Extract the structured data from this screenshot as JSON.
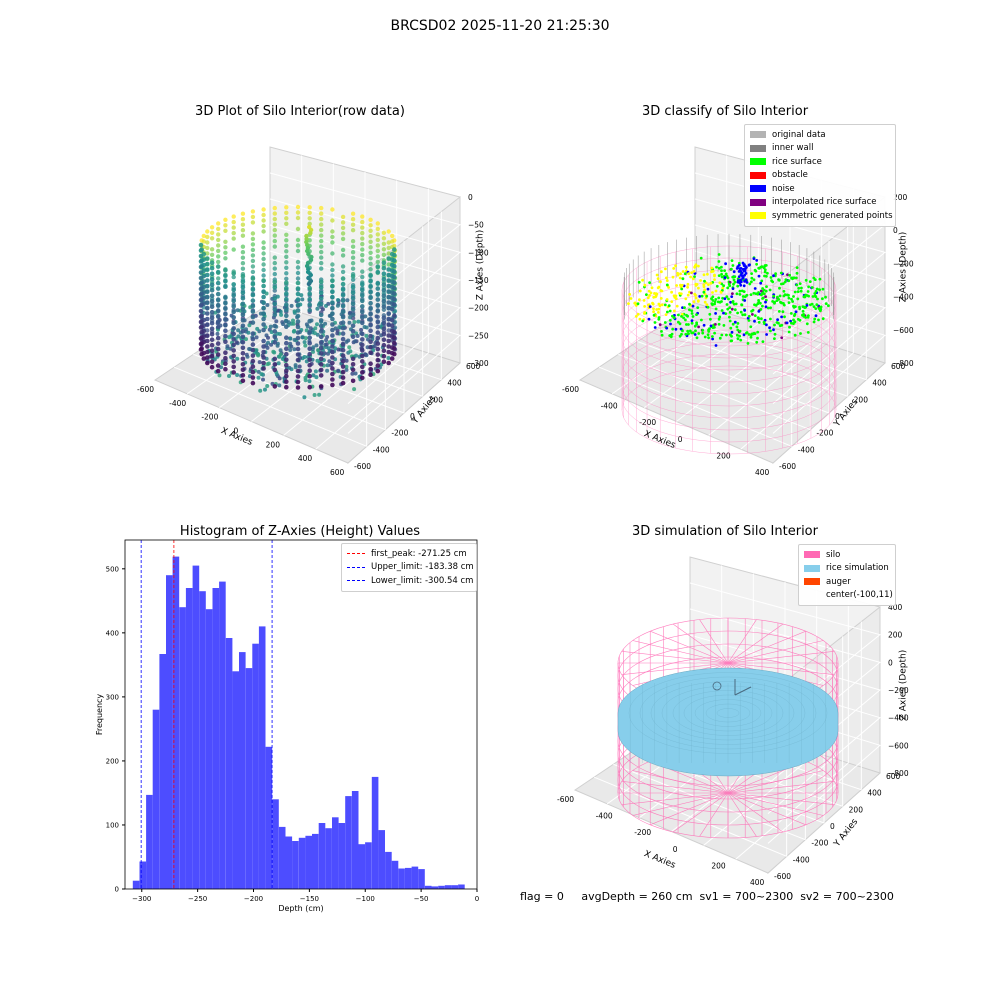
{
  "suptitle": "BRCSD02 2025-11-20 21:25:30",
  "panel1": {
    "title": "3D Plot of Silo Interior(row data)",
    "xlabel": "X Axies",
    "ylabel": "Y Axies",
    "zlabel": "Z Axies (Depth)",
    "xticks": [
      "-600",
      "-400",
      "-200",
      "0",
      "200",
      "400",
      "600"
    ],
    "yticks": [
      "-600",
      "-400",
      "-200",
      "0",
      "200",
      "400",
      "600"
    ],
    "zticks": [
      "0",
      "−50",
      "−100",
      "−150",
      "−200",
      "−250",
      "−300"
    ]
  },
  "panel2": {
    "title": "3D classify of Silo Interior",
    "xlabel": "X Axies",
    "ylabel": "Y Axies",
    "zlabel": "Z Axies (Depth)",
    "xticks": [
      "-600",
      "-400",
      "-200",
      "0",
      "200",
      "400"
    ],
    "yticks": [
      "-600",
      "-400",
      "-200",
      "0",
      "200",
      "400",
      "600"
    ],
    "zticks": [
      "200",
      "0",
      "−200",
      "−400",
      "−600",
      "−800"
    ],
    "legend": [
      {
        "label": "original data",
        "color": "#b3b3b3"
      },
      {
        "label": "inner wall",
        "color": "#808080"
      },
      {
        "label": "rice surface",
        "color": "#00ff00"
      },
      {
        "label": "obstacle",
        "color": "#ff0000"
      },
      {
        "label": "noise",
        "color": "#0000ff"
      },
      {
        "label": "interpolated rice surface",
        "color": "#800080"
      },
      {
        "label": "symmetric generated points",
        "color": "#ffff00"
      }
    ]
  },
  "panel3": {
    "title": "Histogram of Z-Axies (Height) Values",
    "xlabel": "Depth (cm)",
    "ylabel": "Frequency",
    "legend": [
      {
        "label": "first_peak: -271.25 cm",
        "color": "#ff0000"
      },
      {
        "label": "Upper_limit: -183.38 cm",
        "color": "#0000ff"
      },
      {
        "label": "Lower_limit: -300.54 cm",
        "color": "#0000ff"
      }
    ]
  },
  "panel4": {
    "title": "3D simulation of Silo Interior",
    "xlabel": "X Axies",
    "ylabel": "Y Axies",
    "zlabel": "Z Axies (Depth)",
    "xticks": [
      "-600",
      "-400",
      "-200",
      "0",
      "200",
      "400"
    ],
    "yticks": [
      "-600",
      "-400",
      "-200",
      "0",
      "200",
      "400",
      "600"
    ],
    "zticks": [
      "400",
      "200",
      "0",
      "−200",
      "−400",
      "−600",
      "−800"
    ],
    "legend": [
      {
        "label": "silo",
        "color": "#ff69b4"
      },
      {
        "label": "rice simulation",
        "color": "#87ceeb"
      },
      {
        "label": "auger",
        "color": "#ff4500"
      },
      {
        "label": "center(-100,11)",
        "color": ""
      }
    ]
  },
  "footer": "flag = 0     avgDepth = 260 cm  sv1 = 700~2300  sv2 = 700~2300",
  "chart_data": [
    {
      "type": "scatter",
      "title": "3D Plot of Silo Interior(row data)",
      "xlabel": "X Axies",
      "ylabel": "Y Axies",
      "zlabel": "Z Axies (Depth)",
      "xlim": [
        -700,
        650
      ],
      "ylim": [
        -700,
        650
      ],
      "zlim": [
        -330,
        0
      ],
      "colormap": "viridis",
      "grid": true
    },
    {
      "type": "scatter",
      "title": "3D classify of Silo Interior",
      "xlabel": "X Axies",
      "ylabel": "Y Axies",
      "zlabel": "Z Axies (Depth)",
      "xlim": [
        -700,
        500
      ],
      "ylim": [
        -650,
        650
      ],
      "zlim": [
        -900,
        250
      ],
      "grid": true,
      "legend_position": "top-right"
    },
    {
      "type": "bar",
      "title": "Histogram of Z-Axies (Height) Values",
      "xlabel": "Depth (cm)",
      "ylabel": "Frequency",
      "xlim": [
        -315,
        0
      ],
      "ylim": [
        0,
        545
      ],
      "xticks": [
        -300,
        -250,
        -200,
        -150,
        -100,
        -50,
        0
      ],
      "yticks": [
        0,
        100,
        200,
        300,
        400,
        500
      ],
      "bar_color": "#4d4dff",
      "bins_start": -308,
      "bin_width": 5.94,
      "values": [
        13,
        43,
        147,
        280,
        367,
        490,
        519,
        440,
        470,
        505,
        465,
        437,
        470,
        480,
        392,
        340,
        370,
        345,
        383,
        410,
        222,
        140,
        97,
        82,
        75,
        80,
        83,
        86,
        103,
        95,
        112,
        103,
        145,
        153,
        70,
        73,
        175,
        92,
        58,
        44,
        32,
        33,
        35,
        31,
        5,
        4,
        5,
        6,
        6,
        7
      ],
      "vlines": [
        {
          "name": "first_peak: -271.25 cm",
          "x": -271.25,
          "color": "#ff0000"
        },
        {
          "name": "Upper_limit: -183.38 cm",
          "x": -183.38,
          "color": "#0000ff"
        },
        {
          "name": "Lower_limit: -300.54 cm",
          "x": -300.54,
          "color": "#0000ff"
        }
      ],
      "legend_position": "top-right"
    },
    {
      "type": "surface",
      "title": "3D simulation of Silo Interior",
      "xlabel": "X Axies",
      "ylabel": "Y Axies",
      "zlabel": "Z Axies (Depth)",
      "xlim": [
        -700,
        500
      ],
      "ylim": [
        -650,
        650
      ],
      "zlim": [
        -900,
        450
      ],
      "grid": true,
      "legend_position": "top-right"
    }
  ]
}
